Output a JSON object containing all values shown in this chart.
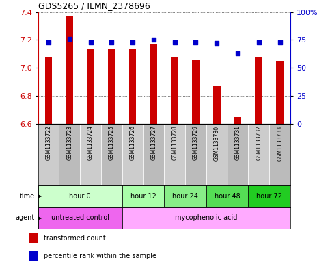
{
  "title": "GDS5265 / ILMN_2378696",
  "samples": [
    "GSM1133722",
    "GSM1133723",
    "GSM1133724",
    "GSM1133725",
    "GSM1133726",
    "GSM1133727",
    "GSM1133728",
    "GSM1133729",
    "GSM1133730",
    "GSM1133731",
    "GSM1133732",
    "GSM1133733"
  ],
  "transformed_count": [
    7.08,
    7.37,
    7.14,
    7.14,
    7.14,
    7.17,
    7.08,
    7.06,
    6.87,
    6.65,
    7.08,
    7.05
  ],
  "percentile_rank": [
    73,
    76,
    73,
    73,
    73,
    75,
    73,
    73,
    72,
    63,
    73,
    73
  ],
  "ylim_left": [
    6.6,
    7.4
  ],
  "ylim_right": [
    0,
    100
  ],
  "yticks_left": [
    6.6,
    6.8,
    7.0,
    7.2,
    7.4
  ],
  "yticks_right": [
    0,
    25,
    50,
    75,
    100
  ],
  "ytick_labels_right": [
    "0",
    "25",
    "50",
    "75",
    "100%"
  ],
  "bar_color": "#cc0000",
  "dot_color": "#0000cc",
  "bar_bottom": 6.6,
  "time_groups": [
    {
      "label": "hour 0",
      "start": 0,
      "end": 3,
      "color": "#ccffcc"
    },
    {
      "label": "hour 12",
      "start": 4,
      "end": 5,
      "color": "#aaffaa"
    },
    {
      "label": "hour 24",
      "start": 6,
      "end": 7,
      "color": "#88ee88"
    },
    {
      "label": "hour 48",
      "start": 8,
      "end": 9,
      "color": "#55dd55"
    },
    {
      "label": "hour 72",
      "start": 10,
      "end": 11,
      "color": "#22cc22"
    }
  ],
  "agent_groups": [
    {
      "label": "untreated control",
      "start": 0,
      "end": 3,
      "color": "#ee66ee"
    },
    {
      "label": "mycophenolic acid",
      "start": 4,
      "end": 11,
      "color": "#ffaaff"
    }
  ],
  "bar_width": 0.35,
  "time_label": "time",
  "agent_label": "agent",
  "legend_items": [
    {
      "label": "transformed count",
      "color": "#cc0000"
    },
    {
      "label": "percentile rank within the sample",
      "color": "#0000cc"
    }
  ],
  "sample_bg_even": "#cccccc",
  "sample_bg_odd": "#bbbbbb",
  "grid_style": "dotted",
  "title_fontsize": 9,
  "tick_fontsize": 8,
  "label_fontsize": 7,
  "sample_fontsize": 5.5,
  "legend_fontsize": 7
}
